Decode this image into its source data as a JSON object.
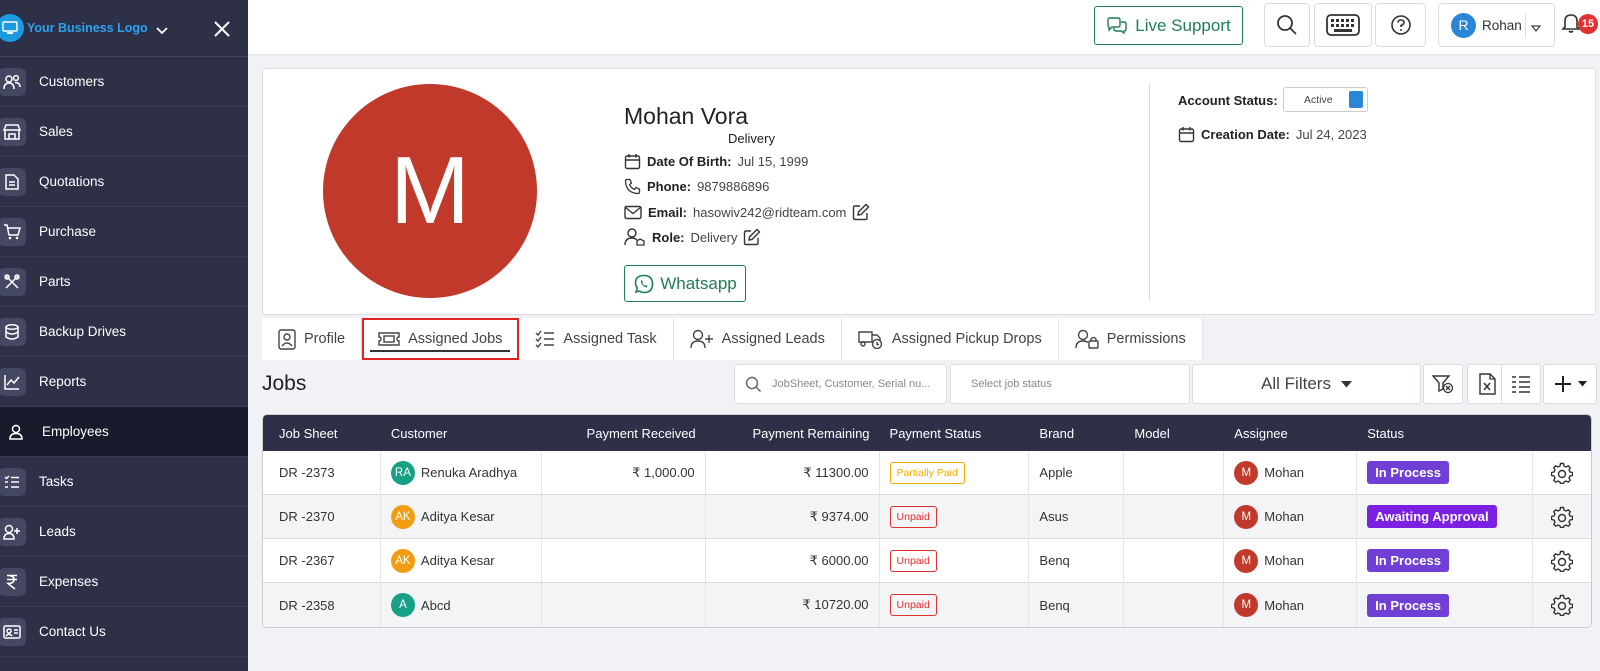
{
  "sidebar": {
    "logo_text": "Your Business Logo",
    "items": [
      {
        "label": "Customers",
        "icon": "users-icon"
      },
      {
        "label": "Sales",
        "icon": "store-icon"
      },
      {
        "label": "Quotations",
        "icon": "document-icon"
      },
      {
        "label": "Purchase",
        "icon": "cart-icon"
      },
      {
        "label": "Parts",
        "icon": "tools-icon"
      },
      {
        "label": "Backup Drives",
        "icon": "database-icon"
      },
      {
        "label": "Reports",
        "icon": "chart-icon"
      },
      {
        "label": "Employees",
        "icon": "user-icon",
        "active": true
      },
      {
        "label": "Tasks",
        "icon": "tasks-icon"
      },
      {
        "label": "Leads",
        "icon": "user-plus-icon"
      },
      {
        "label": "Expenses",
        "icon": "rupee-icon"
      },
      {
        "label": "Contact Us",
        "icon": "contact-card-icon"
      }
    ]
  },
  "topbar": {
    "live_support": "Live Support",
    "user_initial": "R",
    "user_name": "Rohan",
    "notification_count": "15"
  },
  "profile": {
    "initial": "M",
    "name": "Mohan Vora",
    "role_subtitle": "Delivery",
    "dob_label": "Date Of Birth:",
    "dob": "Jul 15, 1999",
    "phone_label": "Phone:",
    "phone": "9879886896",
    "email_label": "Email:",
    "email": "hasowiv242@ridteam.com",
    "role_label": "Role:",
    "role": "Delivery",
    "whatsapp": "Whatsapp",
    "account_status_label": "Account Status:",
    "account_status": "Active",
    "creation_date_label": "Creation Date:",
    "creation_date": "Jul 24, 2023"
  },
  "tabs": [
    {
      "label": "Profile"
    },
    {
      "label": "Assigned Jobs",
      "active": true
    },
    {
      "label": "Assigned Task"
    },
    {
      "label": "Assigned Leads"
    },
    {
      "label": "Assigned Pickup Drops"
    },
    {
      "label": "Permissions"
    }
  ],
  "jobs": {
    "title": "Jobs",
    "search_placeholder": "JobSheet, Customer, Serial nu...",
    "status_placeholder": "Select job status",
    "filters_label": "All Filters",
    "columns": [
      "Job Sheet",
      "Customer",
      "Payment Received",
      "Payment Remaining",
      "Payment Status",
      "Brand",
      "Model",
      "Assignee",
      "Status"
    ],
    "rows": [
      {
        "job": "DR -2373",
        "cust_initials": "RA",
        "cust_color": "#16a085",
        "customer": "Renuka Aradhya",
        "received": "₹  1,000.00",
        "remaining": "₹ 11300.00",
        "pay_status": "Partially Paid",
        "pay_color": "#f0ad00",
        "brand": "Apple",
        "model": "",
        "assignee_initial": "M",
        "assignee": "Mohan",
        "status": "In Process",
        "status_color": "#6f3fd6"
      },
      {
        "job": "DR -2370",
        "cust_initials": "AK",
        "cust_color": "#f39c12",
        "customer": "Aditya Kesar",
        "received": "",
        "remaining": "₹ 9374.00",
        "pay_status": "Unpaid",
        "pay_color": "#e03131",
        "brand": "Asus",
        "model": "",
        "assignee_initial": "M",
        "assignee": "Mohan",
        "status": "Awaiting Approval",
        "status_color": "#7b1fe0"
      },
      {
        "job": "DR -2367",
        "cust_initials": "AK",
        "cust_color": "#f39c12",
        "customer": "Aditya Kesar",
        "received": "",
        "remaining": "₹ 6000.00",
        "pay_status": "Unpaid",
        "pay_color": "#e03131",
        "brand": "Benq",
        "model": "",
        "assignee_initial": "M",
        "assignee": "Mohan",
        "status": "In Process",
        "status_color": "#6f3fd6"
      },
      {
        "job": "DR -2358",
        "cust_initials": "A",
        "cust_color": "#16a085",
        "customer": "Abcd",
        "received": "",
        "remaining": "₹ 10720.00",
        "pay_status": "Unpaid",
        "pay_color": "#e03131",
        "brand": "Benq",
        "model": "",
        "assignee_initial": "M",
        "assignee": "Mohan",
        "status": "In Process",
        "status_color": "#6f3fd6"
      }
    ]
  }
}
